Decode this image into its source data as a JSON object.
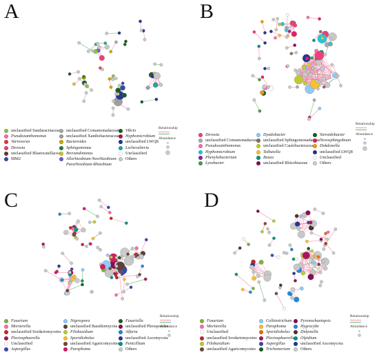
{
  "panels": [
    {
      "letter": "A",
      "legend": {
        "col1": [
          {
            "label": "unclassified Sandaracinaceae",
            "color": "#8bc34a",
            "italic": false
          },
          {
            "label": "Pseudoxanthomonas",
            "color": "#ff69b4",
            "italic": true
          },
          {
            "label": "Variovorax",
            "color": "#e53935",
            "italic": true
          },
          {
            "label": "Devosia",
            "color": "#ec407a",
            "italic": true
          },
          {
            "label": "unclassified Blastocatellaceae",
            "color": "#5d4037",
            "italic": false
          },
          {
            "label": "MM2",
            "color": "#3949ab",
            "italic": false
          }
        ],
        "col2": [
          {
            "label": "unclassified Comamonadaceae",
            "color": "#aaaaaa",
            "italic": false
          },
          {
            "label": "unclassified Xanthobacteraceae",
            "color": "#9e9e9e",
            "italic": false
          },
          {
            "label": "Bacteroides",
            "color": "#c8a800",
            "italic": true
          },
          {
            "label": "Sphingomonas",
            "color": "#2e7d32",
            "italic": true
          },
          {
            "label": "Brevundimonas",
            "color": "#c0ca33",
            "italic": true
          },
          {
            "label": "Allorhizobium-Neorhizobium-",
            "color": "#7e57c2",
            "italic": true
          },
          {
            "label": "Pararhizobium-Rhizobium",
            "color": "",
            "italic": true
          }
        ],
        "col3": [
          {
            "label": "Vibrio",
            "color": "#1b5e20",
            "italic": true
          },
          {
            "label": "Hyphomicrobium",
            "color": "#ad1457",
            "italic": true
          },
          {
            "label": "unclassified LWQ8",
            "color": "#283593",
            "italic": false
          },
          {
            "label": "Lechevalieria",
            "color": "#26a69a",
            "italic": true
          },
          {
            "label": "Unclassified",
            "color": "#ffffff",
            "italic": false
          },
          {
            "label": "Others",
            "color": "#cccccc",
            "italic": false
          }
        ]
      }
    },
    {
      "letter": "B",
      "legend": {
        "col1": [
          {
            "label": "Devosia",
            "color": "#ec407a",
            "italic": true
          },
          {
            "label": "unclassified Comamonadaceae",
            "color": "#aaaaaa",
            "italic": false
          },
          {
            "label": "Pseudoxanthomonas",
            "color": "#ff69b4",
            "italic": true
          },
          {
            "label": "Hyphomicrobium",
            "color": "#26c6da",
            "italic": true
          },
          {
            "label": "Phenylobacterium",
            "color": "#8e24aa",
            "italic": true
          },
          {
            "label": "Lysobacter",
            "color": "#43a047",
            "italic": true
          }
        ],
        "col2": [
          {
            "label": "Dyadobacter",
            "color": "#90caf9",
            "italic": true
          },
          {
            "label": "unclassified Sphingomonadaceae",
            "color": "#8d6e63",
            "italic": false
          },
          {
            "label": "unclassified Caulobacteraceae",
            "color": "#c0ca33",
            "italic": false
          },
          {
            "label": "Taibaiella",
            "color": "#fbc02d",
            "italic": true
          },
          {
            "label": "Bosea",
            "color": "#009688",
            "italic": true
          },
          {
            "label": "unclassified Rhizobiaceae",
            "color": "#880e4f",
            "italic": false
          }
        ],
        "col3": [
          {
            "label": "Steroidobacter",
            "color": "#1b5e20",
            "italic": true
          },
          {
            "label": "Novosphingobium",
            "color": "#e91e63",
            "italic": true
          },
          {
            "label": "Dokdonella",
            "color": "#ff9800",
            "italic": true
          },
          {
            "label": "unclassified LWQ8",
            "color": "#283593",
            "italic": false
          },
          {
            "label": "Unclassified",
            "color": "#ffffff",
            "italic": false
          },
          {
            "label": "Others",
            "color": "#cccccc",
            "italic": false
          }
        ]
      }
    },
    {
      "letter": "C",
      "legend": {
        "col1": [
          {
            "label": "Fusarium",
            "color": "#7cb342",
            "italic": true
          },
          {
            "label": "Mortierella",
            "color": "#ff69b4",
            "italic": true
          },
          {
            "label": "unclassified Sordariomycetes",
            "color": "#c62828",
            "italic": false
          },
          {
            "label": "Plectosphaerella",
            "color": "#ad1457",
            "italic": true
          },
          {
            "label": "Unclassified",
            "color": "#ffffff",
            "italic": false
          },
          {
            "label": "Aspergillus",
            "color": "#3949ab",
            "italic": true
          }
        ],
        "col2": [
          {
            "label": "Nigrospora",
            "color": "#90caf9",
            "italic": true
          },
          {
            "label": "unclassified Basidiomycota",
            "color": "#5d4037",
            "italic": false
          },
          {
            "label": "Filobasidium",
            "color": "#c0ca33",
            "italic": true
          },
          {
            "label": "Sporidiobolus",
            "color": "#fbc02d",
            "italic": true
          },
          {
            "label": "unclassified Agaricomycetes",
            "color": "#6d4c41",
            "italic": false
          },
          {
            "label": "Paraphoma",
            "color": "#d81b60",
            "italic": true
          }
        ],
        "col3": [
          {
            "label": "Fusariella",
            "color": "#1b5e20",
            "italic": true
          },
          {
            "label": "unclassified Pleosporales",
            "color": "#880e4f",
            "italic": false
          },
          {
            "label": "Alfaria",
            "color": "#1e88e5",
            "italic": true
          },
          {
            "label": "unclassified Ascomycota",
            "color": "#283593",
            "italic": false
          },
          {
            "label": "Penicillium",
            "color": "#009688",
            "italic": true
          },
          {
            "label": "Others",
            "color": "#cccccc",
            "italic": false
          }
        ]
      }
    },
    {
      "letter": "D",
      "legend": {
        "col1": [
          {
            "label": "Fusarium",
            "color": "#7cb342",
            "italic": true
          },
          {
            "label": "Mortierella",
            "color": "#ff69b4",
            "italic": true
          },
          {
            "label": "Unclassified",
            "color": "#ffffff",
            "italic": false
          },
          {
            "label": "unclassified Sordariomycetes",
            "color": "#c62828",
            "italic": false
          },
          {
            "label": "Filobasidium",
            "color": "#c0ca33",
            "italic": true
          },
          {
            "label": "unclassified Agaricomycetes",
            "color": "#6d4c41",
            "italic": false
          }
        ],
        "col2": [
          {
            "label": "Colletotrichum",
            "color": "#90caf9",
            "italic": true
          },
          {
            "label": "Paraphoma",
            "color": "#fbc02d",
            "italic": true
          },
          {
            "label": "Sporidiobolus",
            "color": "#ef6c00",
            "italic": true
          },
          {
            "label": "Plectosphaerella",
            "color": "#ad1457",
            "italic": true
          },
          {
            "label": "Aspergillus",
            "color": "#3949ab",
            "italic": true
          },
          {
            "label": "Trichomerium",
            "color": "#1b5e20",
            "italic": true
          }
        ],
        "col3": [
          {
            "label": "Pyrenochaetopsis",
            "color": "#880e4f",
            "italic": true
          },
          {
            "label": "Hygrocybe",
            "color": "#1e88e5",
            "italic": true
          },
          {
            "label": "Didymella",
            "color": "#4e342e",
            "italic": true
          },
          {
            "label": "Olpidium",
            "color": "#009688",
            "italic": true
          },
          {
            "label": "unclassified Ascomycota",
            "color": "#283593",
            "italic": false
          },
          {
            "label": "Others",
            "color": "#cccccc",
            "italic": false
          }
        ]
      }
    }
  ],
  "relationship_label": "Relationship",
  "abundance_label": "Abundance",
  "edge_colors": {
    "positive": "#f48fb1",
    "negative": "#66bb6a"
  },
  "others_color": "#c8c8c8"
}
